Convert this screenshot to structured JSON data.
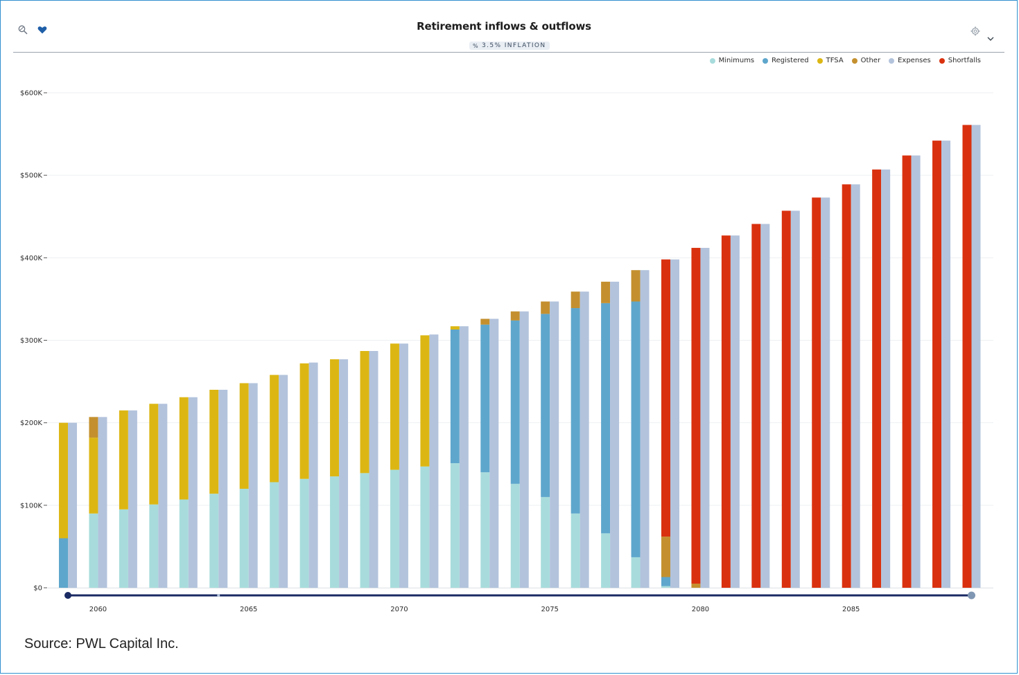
{
  "toolbar": {
    "left_icons": [
      "zoom-icon",
      "heart-icon"
    ],
    "right_icons": [
      "settings-icon",
      "chevron-down-icon"
    ]
  },
  "badge": {
    "text": "3.5% INFLATION",
    "icon": "percent-icon"
  },
  "source": "Source: PWL Capital Inc.",
  "colors": {
    "Minimums": "#a8dcdc",
    "Registered": "#5ea6cc",
    "TFSA": "#dcb714",
    "Other": "#c4902f",
    "Expenses": "#b3c3dc",
    "Shortfalls": "#d9310f",
    "slider": "#1a2a63"
  },
  "chart_data": {
    "type": "bar",
    "title": "Retirement inflows & outflows",
    "ylim": [
      0,
      620000
    ],
    "y_ticks": [
      {
        "value": 0,
        "label": "$0"
      },
      {
        "value": 100000,
        "label": "$100K"
      },
      {
        "value": 200000,
        "label": "$200K"
      },
      {
        "value": 300000,
        "label": "$300K"
      },
      {
        "value": 400000,
        "label": "$400K"
      },
      {
        "value": 500000,
        "label": "$500K"
      },
      {
        "value": 600000,
        "label": "$600K"
      }
    ],
    "x_ticks": [
      2060,
      2065,
      2070,
      2075,
      2080,
      2085
    ],
    "grid": true,
    "legend": {
      "placement": "top-right",
      "entries": [
        "Minimums",
        "Registered",
        "TFSA",
        "Other",
        "Expenses",
        "Shortfalls"
      ]
    },
    "years": [
      2059,
      2060,
      2061,
      2062,
      2063,
      2064,
      2065,
      2066,
      2067,
      2068,
      2069,
      2070,
      2071,
      2072,
      2073,
      2074,
      2075,
      2076,
      2077,
      2078,
      2079,
      2080,
      2081,
      2082,
      2083,
      2084,
      2085,
      2086,
      2087,
      2088,
      2089
    ],
    "series": [
      {
        "name": "Minimums",
        "stack": "inflows",
        "values": [
          0,
          90000,
          95000,
          101000,
          107000,
          114000,
          120000,
          128000,
          132000,
          135000,
          139000,
          143000,
          147000,
          151000,
          140000,
          126000,
          110000,
          90000,
          66000,
          37000,
          2000,
          0,
          0,
          0,
          0,
          0,
          0,
          0,
          0,
          0,
          0
        ]
      },
      {
        "name": "Registered",
        "stack": "inflows",
        "values": [
          60000,
          0,
          0,
          0,
          0,
          0,
          0,
          0,
          0,
          0,
          0,
          0,
          0,
          162000,
          179000,
          198000,
          222000,
          249000,
          279000,
          310000,
          11000,
          0,
          0,
          0,
          0,
          0,
          0,
          0,
          0,
          0,
          0
        ]
      },
      {
        "name": "TFSA",
        "stack": "inflows",
        "values": [
          140000,
          92000,
          120000,
          122000,
          124000,
          126000,
          128000,
          130000,
          140000,
          142000,
          148000,
          153000,
          159000,
          4000,
          0,
          0,
          0,
          0,
          0,
          0,
          0,
          0,
          0,
          0,
          0,
          0,
          0,
          0,
          0,
          0,
          0
        ]
      },
      {
        "name": "Other",
        "stack": "inflows",
        "values": [
          0,
          25000,
          0,
          0,
          0,
          0,
          0,
          0,
          0,
          0,
          0,
          0,
          0,
          0,
          7000,
          11000,
          15000,
          20000,
          26000,
          38000,
          49000,
          5000,
          0,
          0,
          0,
          0,
          0,
          0,
          0,
          0,
          0
        ]
      },
      {
        "name": "Shortfalls",
        "stack": "inflows",
        "values": [
          0,
          0,
          0,
          0,
          0,
          0,
          0,
          0,
          0,
          0,
          0,
          0,
          0,
          0,
          0,
          0,
          0,
          0,
          0,
          0,
          336000,
          407000,
          427000,
          441000,
          457000,
          473000,
          489000,
          507000,
          524000,
          542000,
          561000
        ]
      },
      {
        "name": "Expenses",
        "stack": "outflows",
        "values": [
          200000,
          207000,
          215000,
          223000,
          231000,
          240000,
          248000,
          258000,
          273000,
          277000,
          287000,
          296000,
          307000,
          317000,
          326000,
          335000,
          347000,
          359000,
          371000,
          385000,
          398000,
          412000,
          427000,
          441000,
          457000,
          473000,
          489000,
          507000,
          524000,
          542000,
          561000
        ]
      }
    ]
  }
}
